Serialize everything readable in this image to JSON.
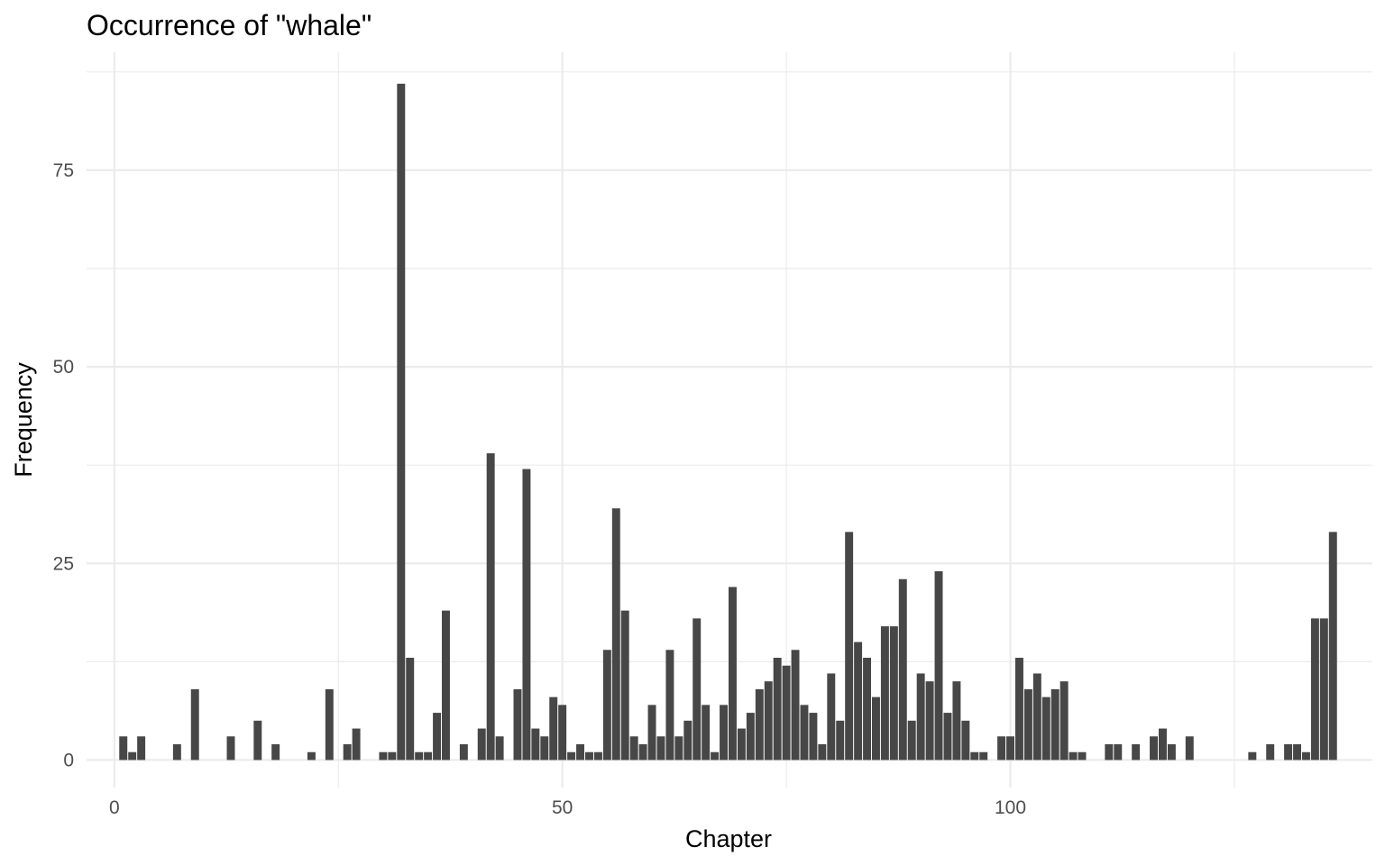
{
  "chart_data": {
    "type": "bar",
    "title": "Occurrence of \"whale\"",
    "xlabel": "Chapter",
    "ylabel": "Frequency",
    "xlim": [
      -3.1,
      140.4
    ],
    "ylim": [
      -3.5,
      90
    ],
    "x_major_ticks": [
      0,
      50,
      100
    ],
    "x_minor_ticks": [
      25,
      75,
      125
    ],
    "y_major_ticks": [
      0,
      25,
      50,
      75
    ],
    "y_minor_ticks": [
      12.5,
      37.5,
      62.5,
      87.5
    ],
    "x_tick_labels": [
      "0",
      "50",
      "100"
    ],
    "y_tick_labels": [
      "0",
      "25",
      "50",
      "75"
    ],
    "bar_color": "#474747",
    "grid": true,
    "points": [
      {
        "x": 1,
        "y": 3
      },
      {
        "x": 2,
        "y": 1
      },
      {
        "x": 3,
        "y": 3
      },
      {
        "x": 7,
        "y": 2
      },
      {
        "x": 9,
        "y": 9
      },
      {
        "x": 13,
        "y": 3
      },
      {
        "x": 16,
        "y": 5
      },
      {
        "x": 18,
        "y": 2
      },
      {
        "x": 22,
        "y": 1
      },
      {
        "x": 24,
        "y": 9
      },
      {
        "x": 26,
        "y": 2
      },
      {
        "x": 27,
        "y": 4
      },
      {
        "x": 30,
        "y": 1
      },
      {
        "x": 31,
        "y": 1
      },
      {
        "x": 32,
        "y": 86
      },
      {
        "x": 33,
        "y": 13
      },
      {
        "x": 34,
        "y": 1
      },
      {
        "x": 35,
        "y": 1
      },
      {
        "x": 36,
        "y": 6
      },
      {
        "x": 37,
        "y": 19
      },
      {
        "x": 39,
        "y": 2
      },
      {
        "x": 41,
        "y": 4
      },
      {
        "x": 42,
        "y": 39
      },
      {
        "x": 43,
        "y": 3
      },
      {
        "x": 45,
        "y": 9
      },
      {
        "x": 46,
        "y": 37
      },
      {
        "x": 47,
        "y": 4
      },
      {
        "x": 48,
        "y": 3
      },
      {
        "x": 49,
        "y": 8
      },
      {
        "x": 50,
        "y": 7
      },
      {
        "x": 51,
        "y": 1
      },
      {
        "x": 52,
        "y": 2
      },
      {
        "x": 53,
        "y": 1
      },
      {
        "x": 54,
        "y": 1
      },
      {
        "x": 55,
        "y": 14
      },
      {
        "x": 56,
        "y": 32
      },
      {
        "x": 57,
        "y": 19
      },
      {
        "x": 58,
        "y": 3
      },
      {
        "x": 59,
        "y": 2
      },
      {
        "x": 60,
        "y": 7
      },
      {
        "x": 61,
        "y": 3
      },
      {
        "x": 62,
        "y": 14
      },
      {
        "x": 63,
        "y": 3
      },
      {
        "x": 64,
        "y": 5
      },
      {
        "x": 65,
        "y": 18
      },
      {
        "x": 66,
        "y": 7
      },
      {
        "x": 67,
        "y": 1
      },
      {
        "x": 68,
        "y": 7
      },
      {
        "x": 69,
        "y": 22
      },
      {
        "x": 70,
        "y": 4
      },
      {
        "x": 71,
        "y": 6
      },
      {
        "x": 72,
        "y": 9
      },
      {
        "x": 73,
        "y": 10
      },
      {
        "x": 74,
        "y": 13
      },
      {
        "x": 75,
        "y": 12
      },
      {
        "x": 76,
        "y": 14
      },
      {
        "x": 77,
        "y": 7
      },
      {
        "x": 78,
        "y": 6
      },
      {
        "x": 79,
        "y": 2
      },
      {
        "x": 80,
        "y": 11
      },
      {
        "x": 81,
        "y": 5
      },
      {
        "x": 82,
        "y": 29
      },
      {
        "x": 83,
        "y": 15
      },
      {
        "x": 84,
        "y": 13
      },
      {
        "x": 85,
        "y": 8
      },
      {
        "x": 86,
        "y": 17
      },
      {
        "x": 87,
        "y": 17
      },
      {
        "x": 88,
        "y": 23
      },
      {
        "x": 89,
        "y": 5
      },
      {
        "x": 90,
        "y": 11
      },
      {
        "x": 91,
        "y": 10
      },
      {
        "x": 92,
        "y": 24
      },
      {
        "x": 93,
        "y": 6
      },
      {
        "x": 94,
        "y": 10
      },
      {
        "x": 95,
        "y": 5
      },
      {
        "x": 96,
        "y": 1
      },
      {
        "x": 97,
        "y": 1
      },
      {
        "x": 99,
        "y": 3
      },
      {
        "x": 100,
        "y": 3
      },
      {
        "x": 101,
        "y": 13
      },
      {
        "x": 102,
        "y": 9
      },
      {
        "x": 103,
        "y": 11
      },
      {
        "x": 104,
        "y": 8
      },
      {
        "x": 105,
        "y": 9
      },
      {
        "x": 106,
        "y": 10
      },
      {
        "x": 107,
        "y": 1
      },
      {
        "x": 108,
        "y": 1
      },
      {
        "x": 111,
        "y": 2
      },
      {
        "x": 112,
        "y": 2
      },
      {
        "x": 114,
        "y": 2
      },
      {
        "x": 116,
        "y": 3
      },
      {
        "x": 117,
        "y": 4
      },
      {
        "x": 118,
        "y": 2
      },
      {
        "x": 120,
        "y": 3
      },
      {
        "x": 127,
        "y": 1
      },
      {
        "x": 129,
        "y": 2
      },
      {
        "x": 131,
        "y": 2
      },
      {
        "x": 132,
        "y": 2
      },
      {
        "x": 133,
        "y": 1
      },
      {
        "x": 134,
        "y": 18
      },
      {
        "x": 135,
        "y": 18
      },
      {
        "x": 136,
        "y": 29
      }
    ]
  }
}
